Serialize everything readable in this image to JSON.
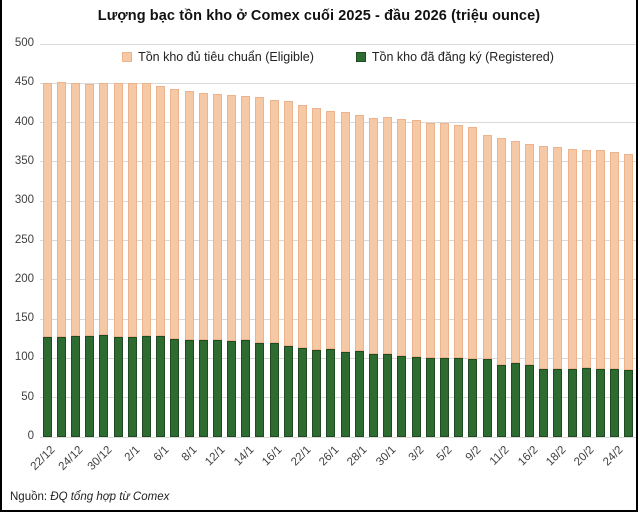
{
  "title": "Lượng bạc tồn kho ở Comex cuối 2025 - đầu 2026 (triệu ounce)",
  "legend": [
    {
      "label": "Tồn kho đủ tiêu chuẩn (Eligible)",
      "color": "#f5c8a6",
      "border": "#edb38c"
    },
    {
      "label": "Tồn kho đã đăng ký (Registered)",
      "color": "#2e6b31",
      "border": "#1f4a22"
    }
  ],
  "footer": {
    "prefix": "Nguồn:",
    "source": "ĐQ tổng hợp từ Comex"
  },
  "axes": {
    "grid_color": "#d9d9d9",
    "text_color": "#404040"
  },
  "chart_data": {
    "type": "bar",
    "stacked": true,
    "title": "Lượng bạc tồn kho ở Comex cuối 2025 - đầu 2026 (triệu ounce)",
    "ylabel": "",
    "xlabel": "",
    "ylim": [
      0,
      500
    ],
    "y_ticks": [
      0,
      50,
      100,
      150,
      200,
      250,
      300,
      350,
      400,
      450,
      500
    ],
    "grid": "horizontal",
    "legend_position": "top-center",
    "n_bars": 42,
    "tick_every": 2,
    "x_tick_labels": [
      "22/12",
      "24/12",
      "30/12",
      "2/1",
      "6/1",
      "8/1",
      "12/1",
      "14/1",
      "16/1",
      "22/1",
      "26/1",
      "28/1",
      "30/1",
      "3/2",
      "5/2",
      "9/2",
      "11/2",
      "16/2",
      "18/2",
      "20/2",
      "24/2"
    ],
    "series": [
      {
        "name": "Tồn kho đã đăng ký (Registered)",
        "color": "#2e6b31",
        "border": "#1f4a22",
        "values": [
          127,
          127,
          128,
          128,
          130,
          127,
          127,
          128,
          128,
          125,
          124,
          124,
          124,
          122,
          124,
          120,
          119,
          116,
          113,
          111,
          112,
          108,
          110,
          106,
          105,
          103,
          102,
          101,
          100,
          100,
          99,
          99,
          92,
          94,
          92,
          87,
          87,
          87,
          88,
          87,
          86,
          85
        ]
      },
      {
        "name": "Tồn kho đủ tiêu chuẩn (Eligible)",
        "color": "#f5c8a6",
        "border": "#edb38c",
        "values": [
          324,
          325,
          323,
          321,
          320,
          324,
          324,
          322,
          319,
          318,
          316,
          314,
          312,
          313,
          310,
          313,
          310,
          311,
          309,
          307,
          303,
          306,
          300,
          300,
          302,
          302,
          301,
          299,
          299,
          297,
          296,
          285,
          289,
          283,
          281,
          283,
          282,
          279,
          277,
          278,
          276,
          275
        ]
      }
    ]
  }
}
